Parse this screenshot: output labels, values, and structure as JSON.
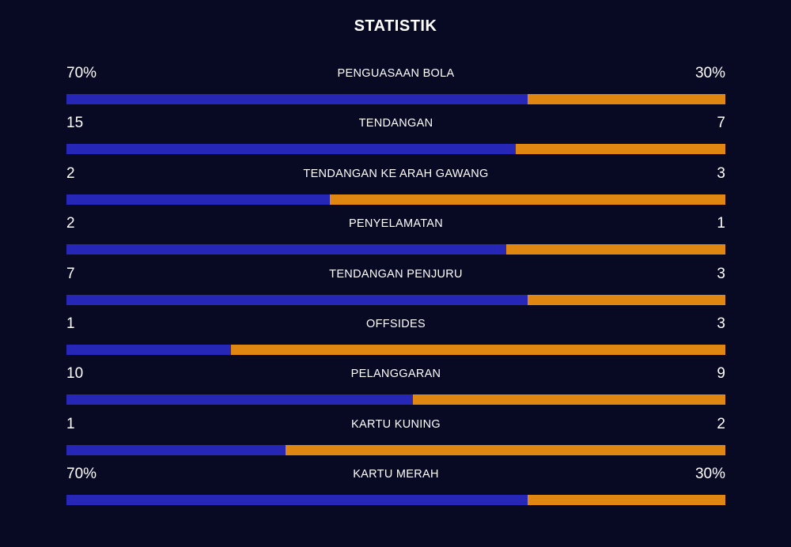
{
  "title": "STATISTIK",
  "colors": {
    "background": "#080a24",
    "home": "#2727b7",
    "away": "#e08712",
    "text": "#ffffff"
  },
  "stats": [
    {
      "label": "PENGUASAAN BOLA",
      "home": "70%",
      "away": "30%",
      "home_share": 0.7
    },
    {
      "label": "TENDANGAN",
      "home": "15",
      "away": "7",
      "home_share": 0.682
    },
    {
      "label": "TENDANGAN KE ARAH GAWANG",
      "home": "2",
      "away": "3",
      "home_share": 0.4
    },
    {
      "label": "PENYELAMATAN",
      "home": "2",
      "away": "1",
      "home_share": 0.667
    },
    {
      "label": "TENDANGAN PENJURU",
      "home": "7",
      "away": "3",
      "home_share": 0.7
    },
    {
      "label": "OFFSIDES",
      "home": "1",
      "away": "3",
      "home_share": 0.25
    },
    {
      "label": "PELANGGARAN",
      "home": "10",
      "away": "9",
      "home_share": 0.526
    },
    {
      "label": "KARTU KUNING",
      "home": "1",
      "away": "2",
      "home_share": 0.333
    },
    {
      "label": "KARTU MERAH",
      "home": "70%",
      "away": "30%",
      "home_share": 0.7
    }
  ]
}
